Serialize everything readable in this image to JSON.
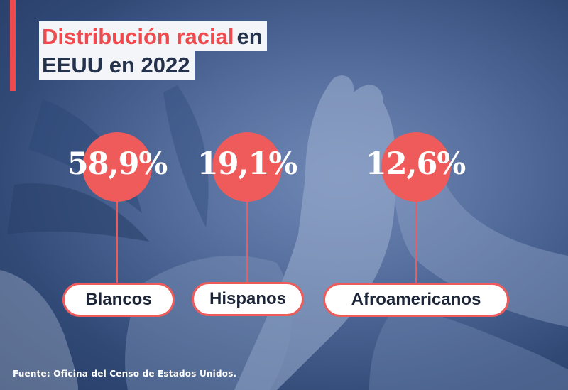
{
  "title": {
    "line1_highlight": "Distribución racial",
    "line1_rest": "en",
    "line2": "EEUU en 2022"
  },
  "stats": [
    {
      "value": "58,9%",
      "label": "Blancos"
    },
    {
      "value": "19,1%",
      "label": "Hispanos"
    },
    {
      "value": "12,6%",
      "label": "Afroamericanos"
    }
  ],
  "source": "Fuente: Oficina del Censo de Estados Unidos.",
  "colors": {
    "accent": "#ef5b5a",
    "background": "#3c5686",
    "title_text": "#24324c"
  }
}
